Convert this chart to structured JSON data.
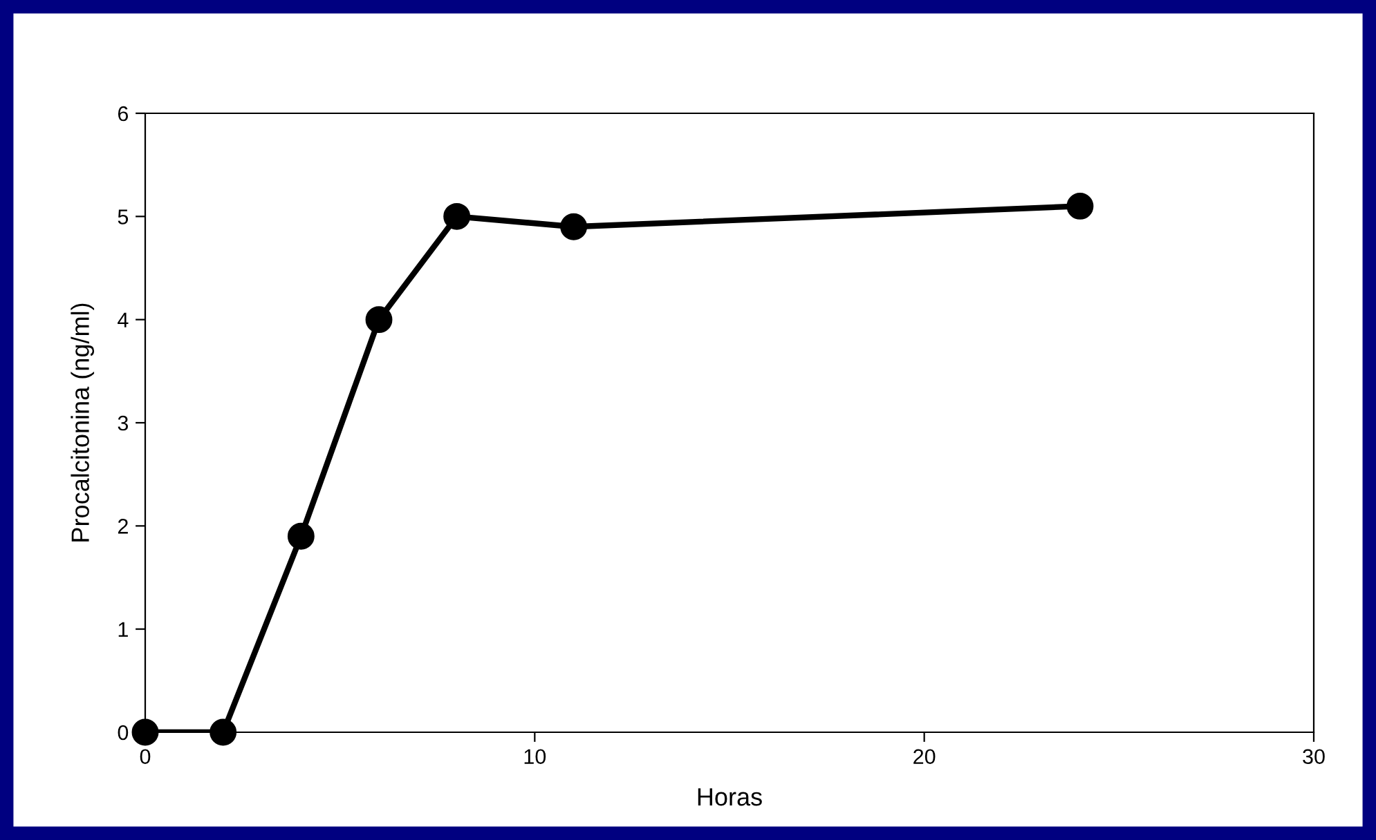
{
  "chart_data": {
    "type": "line",
    "xlabel": "Horas",
    "ylabel": "Procalcitonina (ng/ml)",
    "x": [
      0,
      2,
      4,
      6,
      8,
      11,
      24
    ],
    "series": [
      {
        "color": "#000000",
        "values": [
          0,
          0,
          1.9,
          4,
          5,
          4.9,
          5.1
        ]
      }
    ],
    "xlim": [
      0,
      30
    ],
    "xticks": [
      0,
      10,
      20,
      30
    ],
    "ylim": [
      0,
      6
    ],
    "yticks": [
      0,
      1,
      2,
      3,
      4,
      5,
      6
    ],
    "marker": "circle",
    "line_style": "solid",
    "grid": false,
    "legend": false
  }
}
